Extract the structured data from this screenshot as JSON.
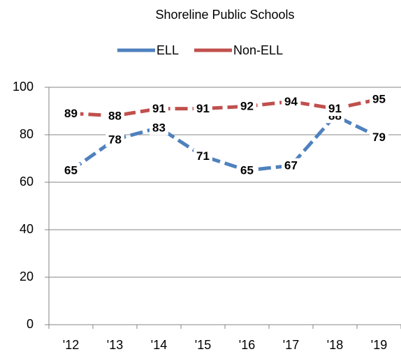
{
  "chart_data": {
    "type": "line",
    "title": "Shoreline Public Schools",
    "categories": [
      "'12",
      "'13",
      "'14",
      "'15",
      "'16",
      "'17",
      "'18",
      "'19"
    ],
    "series": [
      {
        "name": "ELL",
        "color": "#4f81bd",
        "values": [
          65,
          78,
          83,
          71,
          65,
          67,
          88,
          79
        ]
      },
      {
        "name": "Non-ELL",
        "color": "#c0504d",
        "values": [
          89,
          88,
          91,
          91,
          92,
          94,
          91,
          95
        ]
      }
    ],
    "ylim": [
      0,
      100
    ],
    "yticks": [
      0,
      20,
      40,
      60,
      80,
      100
    ],
    "grid": true,
    "legend": "top"
  }
}
